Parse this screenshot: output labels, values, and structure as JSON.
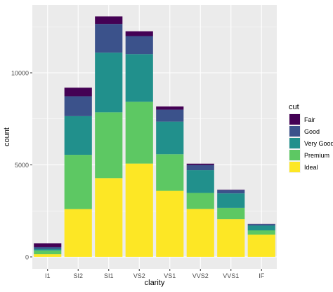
{
  "chart_data": {
    "type": "bar",
    "stacked": true,
    "categories": [
      "I1",
      "SI2",
      "SI1",
      "VS2",
      "VS1",
      "VVS2",
      "VVS1",
      "IF"
    ],
    "series": [
      {
        "name": "Fair",
        "color": "#440154",
        "values": [
          210,
          466,
          408,
          261,
          170,
          69,
          17,
          9
        ]
      },
      {
        "name": "Good",
        "color": "#3B528B",
        "values": [
          96,
          1081,
          1560,
          978,
          648,
          286,
          186,
          71
        ]
      },
      {
        "name": "Very Good",
        "color": "#21908C",
        "values": [
          84,
          2100,
          3240,
          2591,
          1775,
          1235,
          789,
          268
        ]
      },
      {
        "name": "Premium",
        "color": "#5DC863",
        "values": [
          205,
          2949,
          3575,
          3357,
          1989,
          870,
          616,
          230
        ]
      },
      {
        "name": "Ideal",
        "color": "#FDE725",
        "values": [
          146,
          2598,
          4282,
          5071,
          3589,
          2606,
          2047,
          1212
        ]
      }
    ],
    "xlabel": "clarity",
    "ylabel": "count",
    "yticks": [
      0,
      5000,
      10000
    ],
    "ylim": [
      -650,
      13690
    ],
    "grid": true,
    "legend": {
      "title": "cut",
      "position": "right"
    },
    "panel_background": "#EBEBEB",
    "grid_color": "#FFFFFF"
  }
}
